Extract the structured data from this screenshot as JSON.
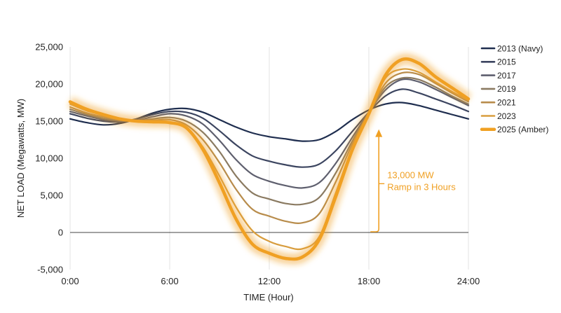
{
  "chart_data": {
    "type": "line",
    "xlabel": "TIME (Hour)",
    "ylabel": "NET LOAD (Megawatts, MW)",
    "xlim": [
      0,
      24
    ],
    "ylim": [
      -5000,
      25000
    ],
    "x_ticks": [
      0,
      6,
      12,
      18,
      24
    ],
    "x_tick_labels": [
      "0:00",
      "6:00",
      "12:00",
      "18:00",
      "24:00"
    ],
    "y_ticks": [
      -5000,
      0,
      5000,
      10000,
      15000,
      20000,
      25000
    ],
    "y_tick_labels": [
      "-5,000",
      "0",
      "5,000",
      "10,000",
      "15,000",
      "20,000",
      "25,000"
    ],
    "grid": "vertical",
    "legend_position": "right",
    "x": [
      0,
      1,
      2,
      3,
      4,
      5,
      6,
      7,
      8,
      9,
      10,
      11,
      12,
      13,
      14,
      15,
      16,
      17,
      18,
      19,
      20,
      21,
      22,
      23,
      24
    ],
    "series": [
      {
        "name": "2013 (Navy)",
        "color": "#1f2e4f",
        "values": [
          15300,
          14800,
          14500,
          14700,
          15300,
          16100,
          16600,
          16700,
          16200,
          15200,
          14200,
          13400,
          12900,
          12600,
          12300,
          12500,
          13600,
          15200,
          16500,
          17300,
          17500,
          17100,
          16500,
          15900,
          15300
        ]
      },
      {
        "name": "2015",
        "color": "#3c4560",
        "values": [
          16000,
          15400,
          15000,
          14900,
          15300,
          15900,
          16300,
          16200,
          15400,
          13700,
          11800,
          10300,
          9600,
          9100,
          8800,
          9200,
          11000,
          13600,
          16200,
          18400,
          19300,
          18800,
          18000,
          17200,
          16300
        ]
      },
      {
        "name": "2017",
        "color": "#5e5f6e",
        "values": [
          16300,
          15700,
          15200,
          15000,
          15100,
          15600,
          16000,
          15700,
          14600,
          12400,
          9800,
          7800,
          6900,
          6300,
          6000,
          6700,
          9300,
          12800,
          16200,
          19200,
          20600,
          20300,
          19300,
          18200,
          17100
        ]
      },
      {
        "name": "2019",
        "color": "#8a7a61",
        "values": [
          16600,
          15900,
          15400,
          15100,
          15000,
          15300,
          15500,
          15000,
          13500,
          10900,
          7600,
          5300,
          4500,
          3900,
          3800,
          4700,
          8000,
          12300,
          16100,
          19600,
          20800,
          20600,
          19600,
          18400,
          17300
        ]
      },
      {
        "name": "2021",
        "color": "#b88c4b",
        "values": [
          16900,
          16100,
          15600,
          15200,
          15000,
          15100,
          15200,
          14500,
          12500,
          9400,
          5800,
          3100,
          2200,
          1500,
          1300,
          2500,
          6800,
          11900,
          16100,
          20100,
          21500,
          21300,
          20100,
          18800,
          17600
        ]
      },
      {
        "name": "2023",
        "color": "#d89d3e",
        "values": [
          17300,
          16400,
          15800,
          15300,
          15000,
          15000,
          14900,
          14100,
          11500,
          7600,
          3400,
          200,
          -1200,
          -1900,
          -2200,
          -600,
          5300,
          11400,
          16100,
          20800,
          22000,
          21600,
          20300,
          19000,
          17800
        ]
      },
      {
        "name": "2025 (Amber)",
        "color": "#f0a023",
        "emphasis": true,
        "values": [
          17600,
          16600,
          15900,
          15300,
          15000,
          14900,
          14800,
          14100,
          11200,
          6700,
          1800,
          -1600,
          -2800,
          -3500,
          -3300,
          -1000,
          4800,
          11100,
          16000,
          21200,
          23300,
          22800,
          21000,
          19500,
          18000
        ]
      }
    ],
    "annotation": {
      "lines": [
        "13,000 MW",
        "Ramp in 3 Hours"
      ],
      "color": "#f0a023",
      "from": {
        "x": 18.6,
        "y": 0
      },
      "to": {
        "x": 18.6,
        "y": 13900
      }
    }
  }
}
